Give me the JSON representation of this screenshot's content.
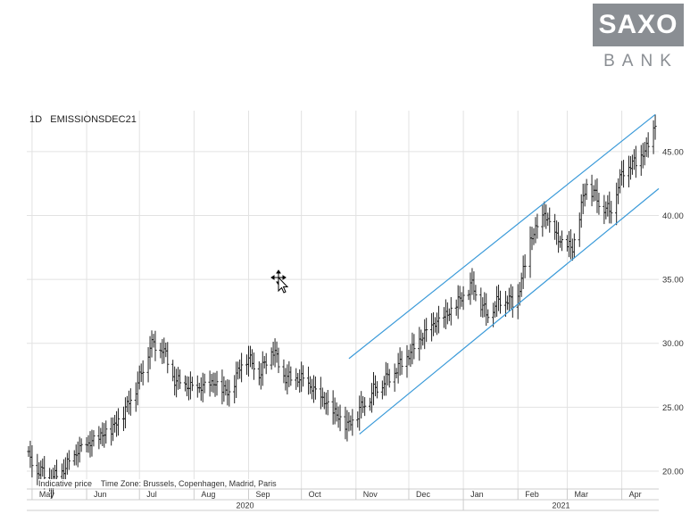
{
  "logo": {
    "main": "SAXO",
    "sub": "BANK"
  },
  "chart_data": {
    "type": "ohlc",
    "interval": "1D",
    "instrument": "EMISSIONSDEC21",
    "footnote": "Indicative price    Time Zone: Brussels, Copenhagen, Madrid, Paris",
    "y_ticks": [
      "20.00",
      "25.00",
      "30.00",
      "35.00",
      "40.00",
      "45.00"
    ],
    "ylim": [
      18.6,
      48.2
    ],
    "month_labels": [
      "May",
      "Jun",
      "Jul",
      "Aug",
      "Sep",
      "Oct",
      "Nov",
      "Dec",
      "Jan",
      "Feb",
      "Mar",
      "Apr"
    ],
    "years": [
      "2020",
      "2021"
    ],
    "x_range": {
      "start": "2020-04-28",
      "end": "2021-04-22"
    },
    "close_anchors": [
      [
        "2020-04-29",
        21.0
      ],
      [
        "2020-05-05",
        20.0
      ],
      [
        "2020-05-12",
        19.2
      ],
      [
        "2020-05-20",
        20.2
      ],
      [
        "2020-05-27",
        21.5
      ],
      [
        "2020-06-05",
        22.3
      ],
      [
        "2020-06-16",
        23.3
      ],
      [
        "2020-06-24",
        25.0
      ],
      [
        "2020-07-02",
        27.5
      ],
      [
        "2020-07-07",
        29.8
      ],
      [
        "2020-07-14",
        29.6
      ],
      [
        "2020-07-21",
        27.0
      ],
      [
        "2020-08-02",
        26.3
      ],
      [
        "2020-08-12",
        26.8
      ],
      [
        "2020-08-21",
        26.0
      ],
      [
        "2020-08-30",
        29.0
      ],
      [
        "2020-09-08",
        27.6
      ],
      [
        "2020-09-14",
        29.6
      ],
      [
        "2020-09-22",
        27.2
      ],
      [
        "2020-10-02",
        27.1
      ],
      [
        "2020-10-11",
        25.8
      ],
      [
        "2020-10-19",
        24.6
      ],
      [
        "2020-10-27",
        23.4
      ],
      [
        "2020-11-03",
        24.7
      ],
      [
        "2020-11-12",
        26.4
      ],
      [
        "2020-11-20",
        27.3
      ],
      [
        "2020-12-01",
        29.0
      ],
      [
        "2020-12-12",
        31.0
      ],
      [
        "2020-12-24",
        32.3
      ],
      [
        "2021-01-06",
        34.5
      ],
      [
        "2021-01-14",
        32.2
      ],
      [
        "2021-01-23",
        33.5
      ],
      [
        "2021-01-31",
        33.0
      ],
      [
        "2021-02-08",
        38.0
      ],
      [
        "2021-02-16",
        40.0
      ],
      [
        "2021-02-24",
        38.0
      ],
      [
        "2021-03-04",
        37.3
      ],
      [
        "2021-03-12",
        42.5
      ],
      [
        "2021-03-19",
        41.0
      ],
      [
        "2021-03-25",
        40.2
      ],
      [
        "2021-04-02",
        43.5
      ],
      [
        "2021-04-11",
        44.3
      ],
      [
        "2021-04-16",
        45.4
      ],
      [
        "2021-04-20",
        46.9
      ]
    ],
    "channel": {
      "upper": [
        [
          "2020-10-28",
          28.8
        ],
        [
          "2021-04-20",
          47.9
        ]
      ],
      "lower": [
        [
          "2020-11-03",
          22.9
        ],
        [
          "2021-04-22",
          42.1
        ]
      ]
    },
    "colors": {
      "bar": "#222222",
      "channel": "#3a9ad9",
      "grid": "#e2e2e2"
    }
  }
}
